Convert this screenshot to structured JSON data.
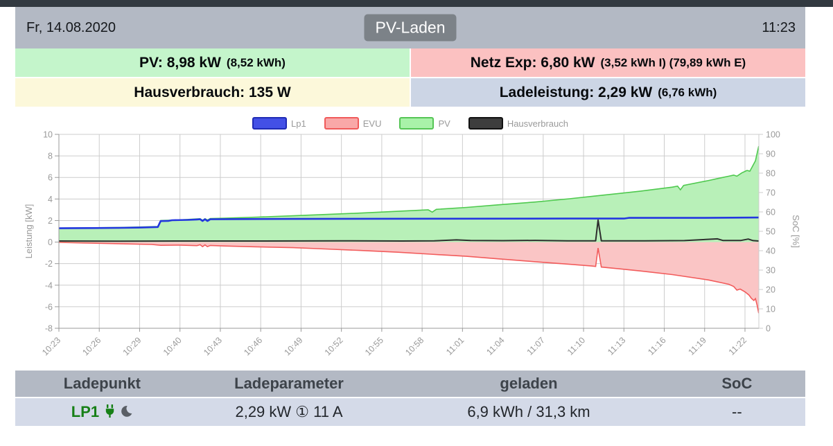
{
  "statusbar": {
    "date": "Fr, 14.08.2020",
    "title": "PV-Laden",
    "time": "11:23"
  },
  "panels": {
    "pv": {
      "main": "PV: 8,98 kW",
      "sub": "(8,52 kWh)",
      "bg": "#c4f5cb"
    },
    "netz": {
      "main": "Netz Exp: 6,80 kW",
      "sub": "(3,52 kWh I) (79,89 kWh E)",
      "bg": "#fbc1c1"
    },
    "haus": {
      "main": "Hausverbrauch: 135 W",
      "sub": "",
      "bg": "#fcf8da"
    },
    "lade": {
      "main": "Ladeleistung: 2,29 kW",
      "sub": "(6,76 kWh)",
      "bg": "#ccd5e5"
    }
  },
  "chart_data": {
    "type": "line",
    "x": {
      "labels": [
        "10:23",
        "10:26",
        "10:29",
        "10:40",
        "10:43",
        "10:46",
        "10:49",
        "10:52",
        "10:55",
        "10:58",
        "11:01",
        "11:04",
        "11:07",
        "11:10",
        "11:13",
        "11:16",
        "11:19",
        "11:22"
      ]
    },
    "y_left": {
      "label": "Leistung [kW]",
      "ticks": [
        10,
        8,
        6,
        4,
        2,
        0,
        -2,
        -4,
        -6,
        -8
      ],
      "range": [
        -8,
        10
      ]
    },
    "y_right": {
      "label": "SoC [%]",
      "ticks": [
        100,
        90,
        80,
        70,
        60,
        50,
        40,
        30,
        20,
        10,
        0
      ],
      "range": [
        0,
        100
      ]
    },
    "grid": true,
    "legend_position": "top-center",
    "legend": [
      {
        "label": "Lp1",
        "fill": "#4350e6",
        "border": "#1f2ab4"
      },
      {
        "label": "EVU",
        "fill": "#f9a8a8",
        "border": "#f05a5a"
      },
      {
        "label": "PV",
        "fill": "#a9f2a9",
        "border": "#55c555"
      },
      {
        "label": "Hausverbrauch",
        "fill": "#3d3d3d",
        "border": "#101010"
      }
    ],
    "series": [
      {
        "name": "PV",
        "type": "area",
        "unit": "kW",
        "line_color": "#4ec94e",
        "fill_color": "#b8f0b8",
        "width": 1.6,
        "points": [
          [
            0,
            1.3
          ],
          [
            0.8,
            1.33
          ],
          [
            1.5,
            1.36
          ],
          [
            2.0,
            1.4
          ],
          [
            2.45,
            1.45
          ],
          [
            2.52,
            2.0
          ],
          [
            3.0,
            2.06
          ],
          [
            3.42,
            2.15
          ],
          [
            3.5,
            2.17
          ],
          [
            3.56,
            2.03
          ],
          [
            3.62,
            2.17
          ],
          [
            3.68,
            2.05
          ],
          [
            3.75,
            2.18
          ],
          [
            4.1,
            2.22
          ],
          [
            4.9,
            2.32
          ],
          [
            5.8,
            2.44
          ],
          [
            6.6,
            2.56
          ],
          [
            7.5,
            2.7
          ],
          [
            8.4,
            2.86
          ],
          [
            9.15,
            3.0
          ],
          [
            9.25,
            2.78
          ],
          [
            9.35,
            3.04
          ],
          [
            10.1,
            3.22
          ],
          [
            10.9,
            3.46
          ],
          [
            11.8,
            3.72
          ],
          [
            12.65,
            4.02
          ],
          [
            13.5,
            4.36
          ],
          [
            14.4,
            4.72
          ],
          [
            15.2,
            5.1
          ],
          [
            15.33,
            5.2
          ],
          [
            15.4,
            4.85
          ],
          [
            15.48,
            5.26
          ],
          [
            16.1,
            5.72
          ],
          [
            16.4,
            5.96
          ],
          [
            16.6,
            6.12
          ],
          [
            16.72,
            6.22
          ],
          [
            16.8,
            6.12
          ],
          [
            16.92,
            6.42
          ],
          [
            17.05,
            6.65
          ],
          [
            17.12,
            6.58
          ],
          [
            17.18,
            7.0
          ],
          [
            17.26,
            7.55
          ],
          [
            17.34,
            8.9
          ]
        ]
      },
      {
        "name": "EVU",
        "type": "area",
        "unit": "kW",
        "line_color": "#f25b5b",
        "fill_color": "#fac5c5",
        "width": 1.6,
        "points": [
          [
            0,
            -0.03
          ],
          [
            0.6,
            -0.08
          ],
          [
            1.5,
            -0.15
          ],
          [
            2.3,
            -0.22
          ],
          [
            2.52,
            -0.3
          ],
          [
            3.0,
            -0.28
          ],
          [
            3.42,
            -0.33
          ],
          [
            3.5,
            -0.25
          ],
          [
            3.56,
            -0.42
          ],
          [
            3.62,
            -0.26
          ],
          [
            3.68,
            -0.42
          ],
          [
            3.75,
            -0.31
          ],
          [
            4.1,
            -0.36
          ],
          [
            4.9,
            -0.44
          ],
          [
            5.8,
            -0.52
          ],
          [
            6.6,
            -0.64
          ],
          [
            7.5,
            -0.78
          ],
          [
            8.4,
            -0.94
          ],
          [
            9.2,
            -1.12
          ],
          [
            10.1,
            -1.32
          ],
          [
            10.9,
            -1.56
          ],
          [
            11.8,
            -1.82
          ],
          [
            12.65,
            -2.06
          ],
          [
            13.2,
            -2.22
          ],
          [
            13.3,
            -2.26
          ],
          [
            13.36,
            -0.55
          ],
          [
            13.44,
            -2.32
          ],
          [
            14.0,
            -2.52
          ],
          [
            14.4,
            -2.68
          ],
          [
            15.2,
            -3.02
          ],
          [
            16.1,
            -3.52
          ],
          [
            16.6,
            -3.92
          ],
          [
            16.72,
            -4.12
          ],
          [
            16.8,
            -4.46
          ],
          [
            16.88,
            -4.36
          ],
          [
            17.0,
            -4.62
          ],
          [
            17.1,
            -4.92
          ],
          [
            17.16,
            -5.22
          ],
          [
            17.22,
            -5.42
          ],
          [
            17.26,
            -5.25
          ],
          [
            17.3,
            -5.85
          ],
          [
            17.34,
            -6.6
          ]
        ]
      },
      {
        "name": "Lp1",
        "type": "line",
        "unit": "kW",
        "line_color": "#2336e0",
        "width": 2.6,
        "points": [
          [
            0,
            1.28
          ],
          [
            0.8,
            1.3
          ],
          [
            1.5,
            1.32
          ],
          [
            2.0,
            1.35
          ],
          [
            2.45,
            1.4
          ],
          [
            2.52,
            1.95
          ],
          [
            2.72,
            1.97
          ],
          [
            2.8,
            2.03
          ],
          [
            3.2,
            2.06
          ],
          [
            3.42,
            2.1
          ],
          [
            3.5,
            2.12
          ],
          [
            3.56,
            1.96
          ],
          [
            3.62,
            2.12
          ],
          [
            3.68,
            1.96
          ],
          [
            3.75,
            2.12
          ],
          [
            4.2,
            2.13
          ],
          [
            5.8,
            2.15
          ],
          [
            9.2,
            2.17
          ],
          [
            12.6,
            2.18
          ],
          [
            14.0,
            2.18
          ],
          [
            14.12,
            2.25
          ],
          [
            16.0,
            2.25
          ],
          [
            17.34,
            2.28
          ]
        ]
      },
      {
        "name": "Hausverbrauch",
        "type": "line",
        "unit": "kW",
        "line_color": "#2d2d2d",
        "width": 2,
        "points": [
          [
            0,
            0.1
          ],
          [
            1.5,
            0.08
          ],
          [
            3.0,
            0.1
          ],
          [
            5.0,
            0.1
          ],
          [
            7.0,
            0.12
          ],
          [
            8.5,
            0.1
          ],
          [
            9.3,
            0.12
          ],
          [
            9.85,
            0.2
          ],
          [
            10.2,
            0.15
          ],
          [
            11.0,
            0.13
          ],
          [
            11.8,
            0.16
          ],
          [
            12.6,
            0.12
          ],
          [
            13.3,
            0.12
          ],
          [
            13.36,
            2.05
          ],
          [
            13.44,
            0.12
          ],
          [
            14.5,
            0.12
          ],
          [
            15.5,
            0.14
          ],
          [
            16.32,
            0.3
          ],
          [
            16.45,
            0.15
          ],
          [
            16.9,
            0.15
          ],
          [
            17.08,
            0.28
          ],
          [
            17.2,
            0.14
          ],
          [
            17.34,
            0.1
          ]
        ]
      }
    ],
    "colors": {
      "grid": "#cccccc",
      "axis": "#999999",
      "tick_text": "#999999"
    }
  },
  "table": {
    "headers": [
      "Ladepunkt",
      "Ladeparameter",
      "geladen",
      "SoC"
    ],
    "row": {
      "ladepunkt": "LP1",
      "ladepunkt_icons": [
        "plug-icon",
        "moon-icon"
      ],
      "ladeparameter": "2,29 kW ① 11 A",
      "geladen": "6,9 kWh / 31,3 km",
      "soc": "--"
    }
  }
}
